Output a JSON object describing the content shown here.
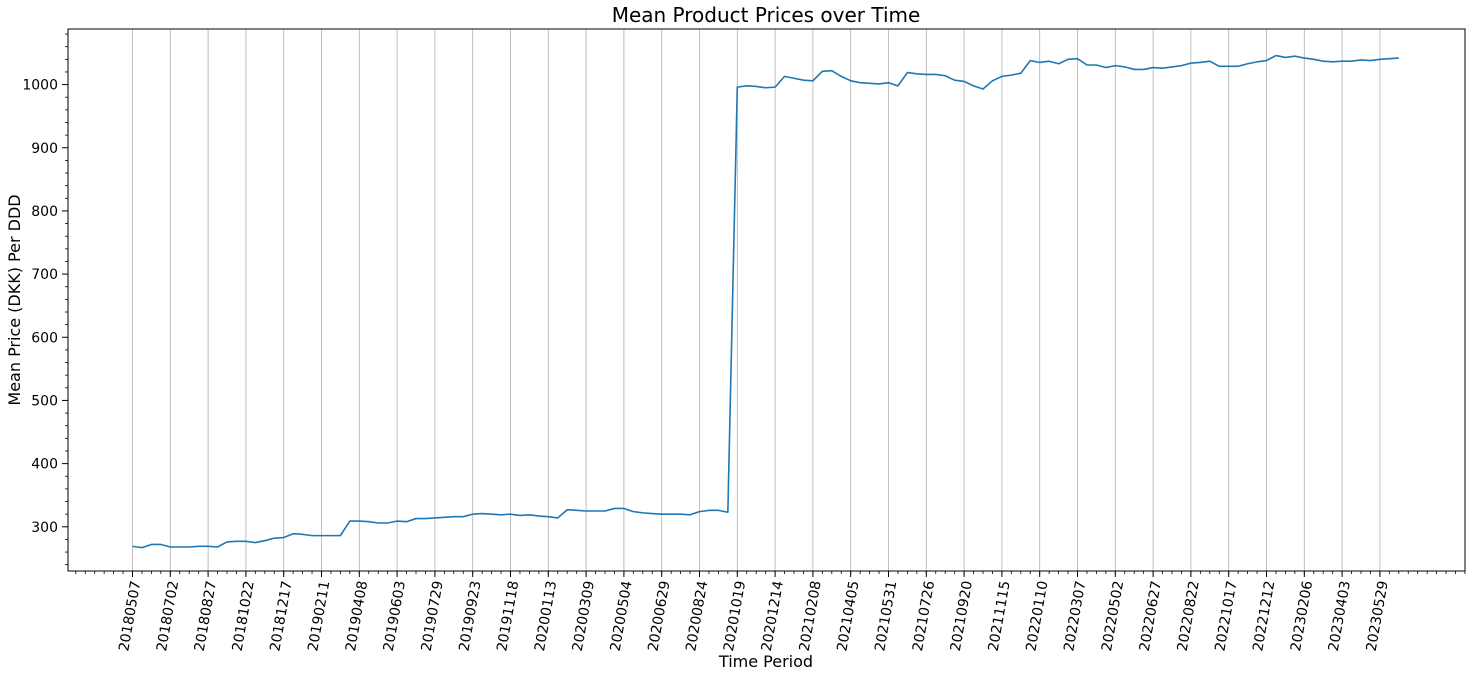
{
  "chart_data": {
    "type": "line",
    "title": "Mean Product Prices over Time",
    "xlabel": "Time Period",
    "ylabel": "Mean Price (DKK) Per DDD",
    "ylim": [
      230,
      1088
    ],
    "yticks": [
      300,
      400,
      500,
      600,
      700,
      800,
      900,
      1000
    ],
    "grid": "vertical",
    "line_color": "#1f77b4",
    "series": [
      {
        "values": [
          269,
          267,
          272,
          272,
          268,
          268,
          268,
          269,
          269,
          268,
          276,
          277,
          277,
          275,
          278,
          282,
          283,
          289,
          288,
          286,
          286,
          286,
          286,
          309,
          309,
          308,
          306,
          306,
          309,
          308,
          313,
          313,
          314,
          315,
          316,
          316,
          320,
          321,
          320,
          319,
          320,
          318,
          319,
          317,
          316,
          314,
          327,
          326,
          325,
          325,
          325,
          329,
          329,
          324,
          322,
          321,
          320,
          320,
          320,
          319,
          324,
          326,
          326,
          323,
          996,
          998,
          997,
          995,
          996,
          1013,
          1010,
          1007,
          1006,
          1021,
          1022,
          1013,
          1006,
          1003,
          1002,
          1001,
          1003,
          998,
          1019,
          1017,
          1016,
          1016,
          1014,
          1007,
          1005,
          998,
          993,
          1006,
          1013,
          1015,
          1018,
          1038,
          1035,
          1037,
          1033,
          1040,
          1041,
          1031,
          1031,
          1027,
          1030,
          1028,
          1024,
          1024,
          1027,
          1026,
          1028,
          1030,
          1034,
          1035,
          1037,
          1029,
          1029,
          1029,
          1033,
          1036,
          1038,
          1046,
          1043,
          1045,
          1042,
          1040,
          1037,
          1036,
          1037,
          1037,
          1039,
          1038,
          1040,
          1041,
          1042
        ]
      }
    ],
    "x_tick_labels": [
      "20180507",
      "20180702",
      "20180827",
      "20181022",
      "20181217",
      "20190211",
      "20190408",
      "20190603",
      "20190729",
      "20190923",
      "20191118",
      "20200113",
      "20200309",
      "20200504",
      "20200629",
      "20200824",
      "20201019",
      "20201214",
      "20210208",
      "20210405",
      "20210531",
      "20210726",
      "20210920",
      "20211115",
      "20220110",
      "20220307",
      "20220502",
      "20220627",
      "20220822",
      "20221017",
      "20221212",
      "20230206",
      "20230403",
      "20230529"
    ],
    "x_tick_step": 4
  }
}
